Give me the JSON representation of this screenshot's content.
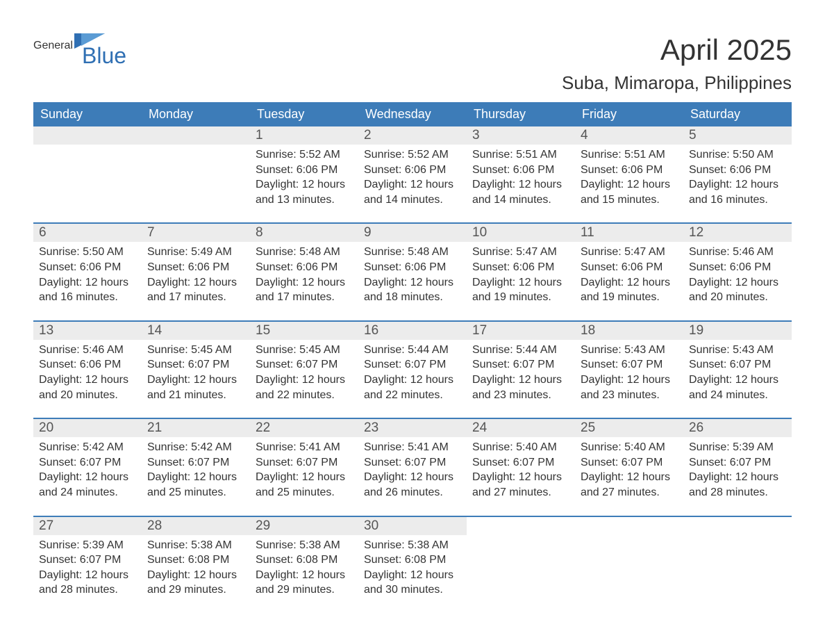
{
  "logo": {
    "general": "General",
    "blue": "Blue"
  },
  "title": "April 2025",
  "location": "Suba, Mimaropa, Philippines",
  "colors": {
    "header_bg": "#3d7cb8",
    "header_text": "#ffffff",
    "daynum_bg": "#ececec",
    "body_text": "#333333",
    "logo_blue": "#2f6fb3",
    "week_border": "#3d7cb8"
  },
  "typography": {
    "title_fontsize": 42,
    "location_fontsize": 26,
    "dow_fontsize": 18,
    "daynum_fontsize": 19,
    "body_fontsize": 16
  },
  "days_of_week": [
    "Sunday",
    "Monday",
    "Tuesday",
    "Wednesday",
    "Thursday",
    "Friday",
    "Saturday"
  ],
  "weeks": [
    [
      {
        "n": "",
        "sunrise": "",
        "sunset": "",
        "daylight": ""
      },
      {
        "n": "",
        "sunrise": "",
        "sunset": "",
        "daylight": ""
      },
      {
        "n": "1",
        "sunrise": "Sunrise: 5:52 AM",
        "sunset": "Sunset: 6:06 PM",
        "daylight": "Daylight: 12 hours and 13 minutes."
      },
      {
        "n": "2",
        "sunrise": "Sunrise: 5:52 AM",
        "sunset": "Sunset: 6:06 PM",
        "daylight": "Daylight: 12 hours and 14 minutes."
      },
      {
        "n": "3",
        "sunrise": "Sunrise: 5:51 AM",
        "sunset": "Sunset: 6:06 PM",
        "daylight": "Daylight: 12 hours and 14 minutes."
      },
      {
        "n": "4",
        "sunrise": "Sunrise: 5:51 AM",
        "sunset": "Sunset: 6:06 PM",
        "daylight": "Daylight: 12 hours and 15 minutes."
      },
      {
        "n": "5",
        "sunrise": "Sunrise: 5:50 AM",
        "sunset": "Sunset: 6:06 PM",
        "daylight": "Daylight: 12 hours and 16 minutes."
      }
    ],
    [
      {
        "n": "6",
        "sunrise": "Sunrise: 5:50 AM",
        "sunset": "Sunset: 6:06 PM",
        "daylight": "Daylight: 12 hours and 16 minutes."
      },
      {
        "n": "7",
        "sunrise": "Sunrise: 5:49 AM",
        "sunset": "Sunset: 6:06 PM",
        "daylight": "Daylight: 12 hours and 17 minutes."
      },
      {
        "n": "8",
        "sunrise": "Sunrise: 5:48 AM",
        "sunset": "Sunset: 6:06 PM",
        "daylight": "Daylight: 12 hours and 17 minutes."
      },
      {
        "n": "9",
        "sunrise": "Sunrise: 5:48 AM",
        "sunset": "Sunset: 6:06 PM",
        "daylight": "Daylight: 12 hours and 18 minutes."
      },
      {
        "n": "10",
        "sunrise": "Sunrise: 5:47 AM",
        "sunset": "Sunset: 6:06 PM",
        "daylight": "Daylight: 12 hours and 19 minutes."
      },
      {
        "n": "11",
        "sunrise": "Sunrise: 5:47 AM",
        "sunset": "Sunset: 6:06 PM",
        "daylight": "Daylight: 12 hours and 19 minutes."
      },
      {
        "n": "12",
        "sunrise": "Sunrise: 5:46 AM",
        "sunset": "Sunset: 6:06 PM",
        "daylight": "Daylight: 12 hours and 20 minutes."
      }
    ],
    [
      {
        "n": "13",
        "sunrise": "Sunrise: 5:46 AM",
        "sunset": "Sunset: 6:06 PM",
        "daylight": "Daylight: 12 hours and 20 minutes."
      },
      {
        "n": "14",
        "sunrise": "Sunrise: 5:45 AM",
        "sunset": "Sunset: 6:07 PM",
        "daylight": "Daylight: 12 hours and 21 minutes."
      },
      {
        "n": "15",
        "sunrise": "Sunrise: 5:45 AM",
        "sunset": "Sunset: 6:07 PM",
        "daylight": "Daylight: 12 hours and 22 minutes."
      },
      {
        "n": "16",
        "sunrise": "Sunrise: 5:44 AM",
        "sunset": "Sunset: 6:07 PM",
        "daylight": "Daylight: 12 hours and 22 minutes."
      },
      {
        "n": "17",
        "sunrise": "Sunrise: 5:44 AM",
        "sunset": "Sunset: 6:07 PM",
        "daylight": "Daylight: 12 hours and 23 minutes."
      },
      {
        "n": "18",
        "sunrise": "Sunrise: 5:43 AM",
        "sunset": "Sunset: 6:07 PM",
        "daylight": "Daylight: 12 hours and 23 minutes."
      },
      {
        "n": "19",
        "sunrise": "Sunrise: 5:43 AM",
        "sunset": "Sunset: 6:07 PM",
        "daylight": "Daylight: 12 hours and 24 minutes."
      }
    ],
    [
      {
        "n": "20",
        "sunrise": "Sunrise: 5:42 AM",
        "sunset": "Sunset: 6:07 PM",
        "daylight": "Daylight: 12 hours and 24 minutes."
      },
      {
        "n": "21",
        "sunrise": "Sunrise: 5:42 AM",
        "sunset": "Sunset: 6:07 PM",
        "daylight": "Daylight: 12 hours and 25 minutes."
      },
      {
        "n": "22",
        "sunrise": "Sunrise: 5:41 AM",
        "sunset": "Sunset: 6:07 PM",
        "daylight": "Daylight: 12 hours and 25 minutes."
      },
      {
        "n": "23",
        "sunrise": "Sunrise: 5:41 AM",
        "sunset": "Sunset: 6:07 PM",
        "daylight": "Daylight: 12 hours and 26 minutes."
      },
      {
        "n": "24",
        "sunrise": "Sunrise: 5:40 AM",
        "sunset": "Sunset: 6:07 PM",
        "daylight": "Daylight: 12 hours and 27 minutes."
      },
      {
        "n": "25",
        "sunrise": "Sunrise: 5:40 AM",
        "sunset": "Sunset: 6:07 PM",
        "daylight": "Daylight: 12 hours and 27 minutes."
      },
      {
        "n": "26",
        "sunrise": "Sunrise: 5:39 AM",
        "sunset": "Sunset: 6:07 PM",
        "daylight": "Daylight: 12 hours and 28 minutes."
      }
    ],
    [
      {
        "n": "27",
        "sunrise": "Sunrise: 5:39 AM",
        "sunset": "Sunset: 6:07 PM",
        "daylight": "Daylight: 12 hours and 28 minutes."
      },
      {
        "n": "28",
        "sunrise": "Sunrise: 5:38 AM",
        "sunset": "Sunset: 6:08 PM",
        "daylight": "Daylight: 12 hours and 29 minutes."
      },
      {
        "n": "29",
        "sunrise": "Sunrise: 5:38 AM",
        "sunset": "Sunset: 6:08 PM",
        "daylight": "Daylight: 12 hours and 29 minutes."
      },
      {
        "n": "30",
        "sunrise": "Sunrise: 5:38 AM",
        "sunset": "Sunset: 6:08 PM",
        "daylight": "Daylight: 12 hours and 30 minutes."
      },
      {
        "n": "",
        "sunrise": "",
        "sunset": "",
        "daylight": ""
      },
      {
        "n": "",
        "sunrise": "",
        "sunset": "",
        "daylight": ""
      },
      {
        "n": "",
        "sunrise": "",
        "sunset": "",
        "daylight": ""
      }
    ]
  ]
}
